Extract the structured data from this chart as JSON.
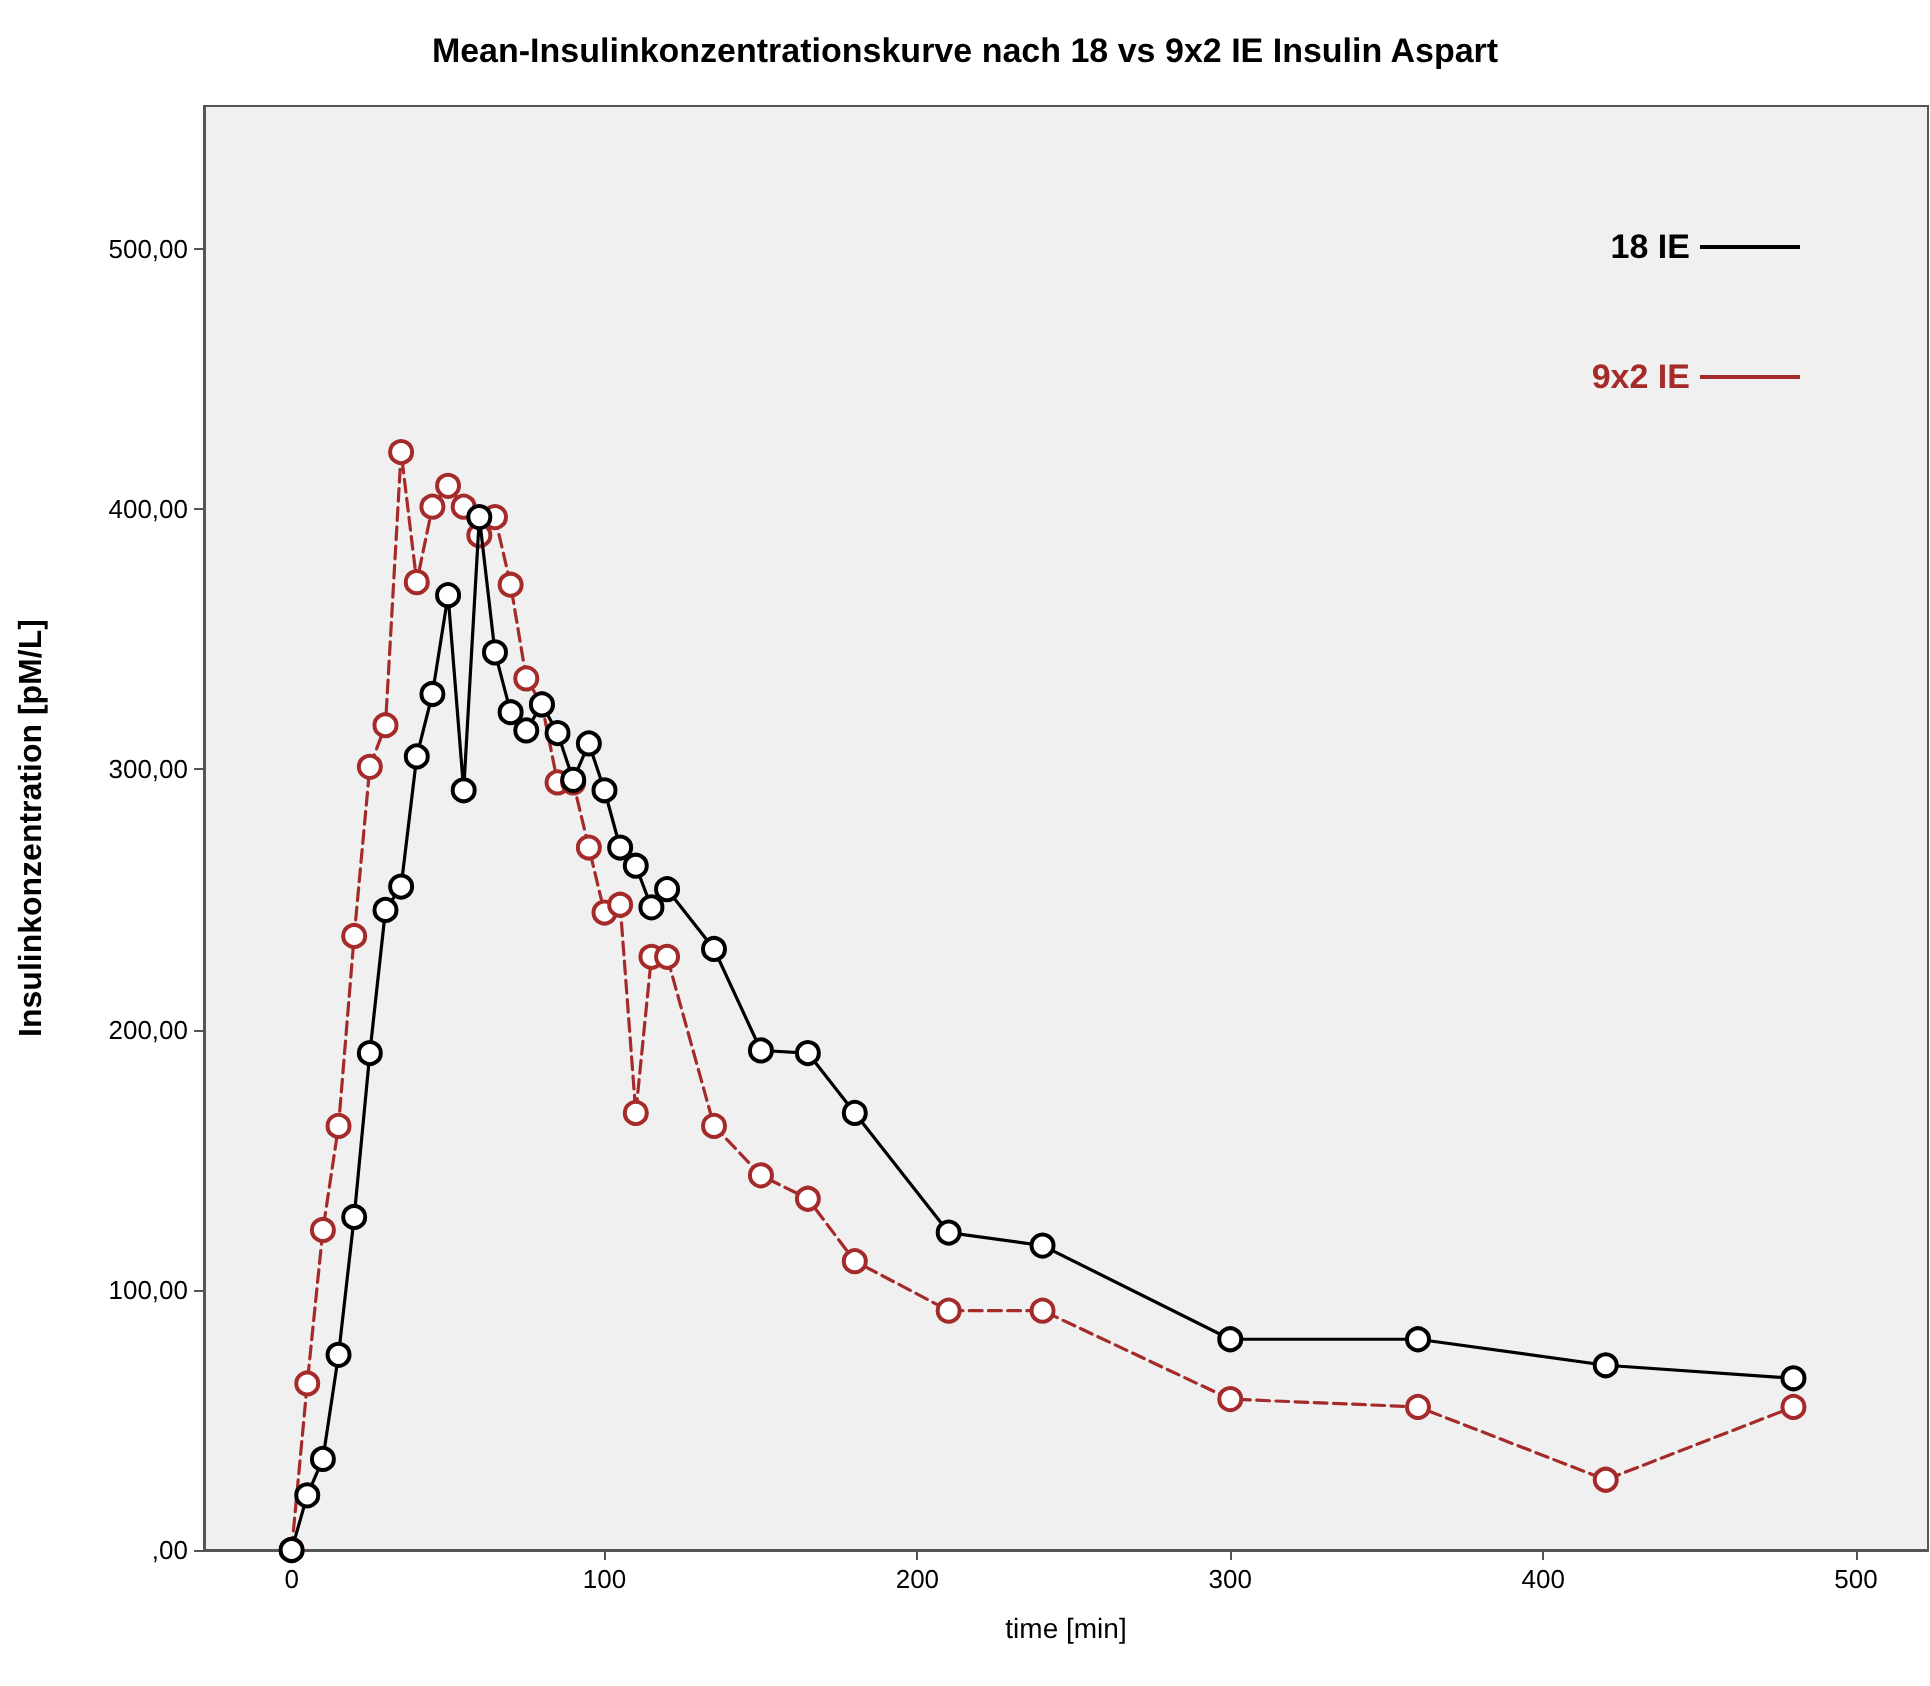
{
  "chart_data": {
    "type": "line",
    "title": "Mean-Insulinkonzentrationskurve nach 18 vs 9x2 IE Insulin Aspart",
    "xlabel": "time [min]",
    "ylabel": "Insulinkonzentration [pM/L]",
    "xlim": [
      -28,
      523
    ],
    "xticks": [
      0,
      100,
      200,
      300,
      400,
      500
    ],
    "ylim": [
      0,
      555
    ],
    "yticks": [
      {
        "value": 0,
        "label": ",00"
      },
      {
        "value": 100,
        "label": "100,00"
      },
      {
        "value": 200,
        "label": "200,00"
      },
      {
        "value": 300,
        "label": "300,00"
      },
      {
        "value": 400,
        "label": "400,00"
      },
      {
        "value": 500,
        "label": "500,00"
      }
    ],
    "grid": false,
    "legend": "top right",
    "marker": "circle",
    "series": [
      {
        "name": "18 IE",
        "color": "#000000",
        "line_style": "solid",
        "x": [
          0,
          5,
          10,
          15,
          20,
          25,
          30,
          35,
          40,
          45,
          50,
          55,
          60,
          65,
          70,
          75,
          80,
          85,
          90,
          95,
          100,
          105,
          110,
          115,
          120,
          135,
          150,
          165,
          180,
          210,
          240,
          300,
          360,
          420,
          480
        ],
        "values": [
          0,
          21,
          35,
          75,
          128,
          191,
          246,
          255,
          305,
          329,
          367,
          292,
          397,
          345,
          322,
          315,
          325,
          314,
          296,
          310,
          292,
          270,
          263,
          247,
          254,
          231,
          192,
          191,
          168,
          122,
          117,
          81,
          81,
          71,
          66
        ]
      },
      {
        "name": "9x2 IE",
        "color": "#a52a2a",
        "line_style": "dashed",
        "x": [
          0,
          5,
          10,
          15,
          20,
          25,
          30,
          35,
          40,
          45,
          50,
          55,
          60,
          65,
          70,
          75,
          80,
          85,
          90,
          95,
          100,
          105,
          110,
          115,
          120,
          135,
          150,
          165,
          180,
          210,
          240,
          300,
          360,
          420,
          480
        ],
        "values": [
          0,
          64,
          123,
          163,
          236,
          301,
          317,
          422,
          372,
          401,
          409,
          401,
          390,
          397,
          371,
          335,
          325,
          295,
          295,
          270,
          245,
          248,
          168,
          228,
          228,
          163,
          144,
          135,
          111,
          92,
          92,
          58,
          55,
          27,
          55
        ]
      }
    ]
  }
}
